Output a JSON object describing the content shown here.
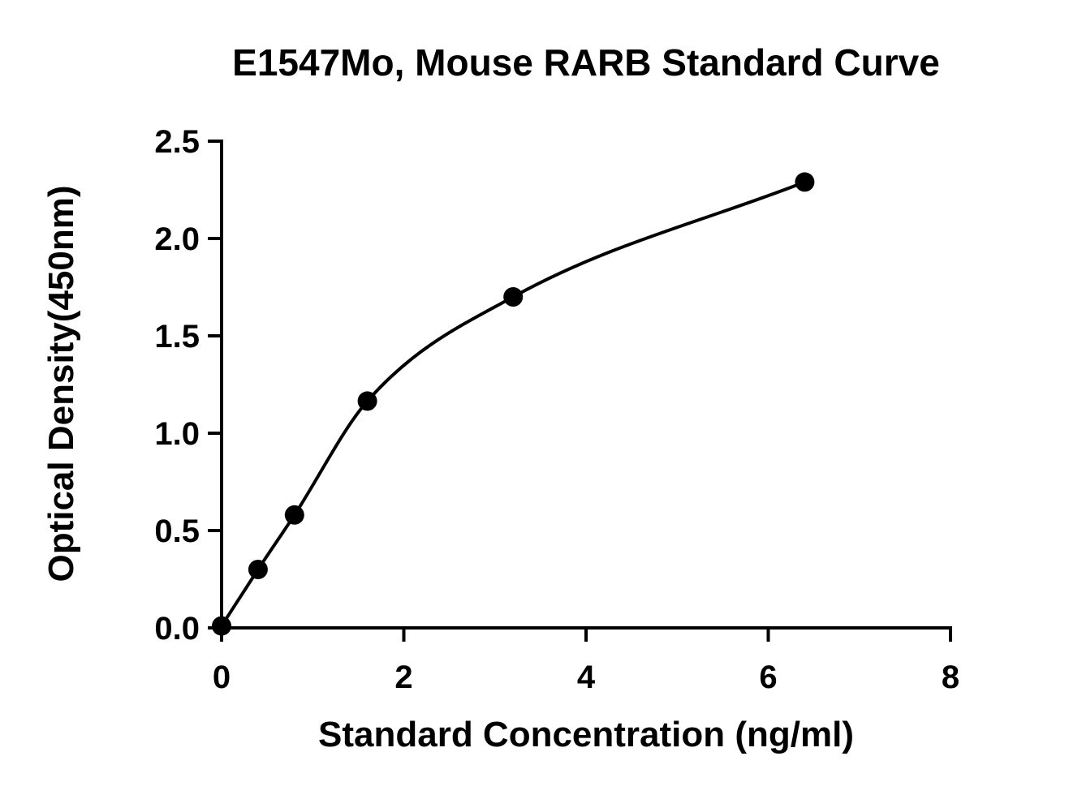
{
  "chart_data": {
    "type": "scatter",
    "title": "E1547Mo, Mouse RARB Standard Curve",
    "xlabel": "Standard Concentration (ng/ml)",
    "ylabel": "Optical Density(450nm)",
    "xlim": [
      0,
      8
    ],
    "ylim": [
      0,
      2.5
    ],
    "x_ticks": [
      "0",
      "2",
      "4",
      "6",
      "8"
    ],
    "x_tick_values": [
      0,
      2,
      4,
      6,
      8
    ],
    "y_ticks": [
      "0.0",
      "0.5",
      "1.0",
      "1.5",
      "2.0",
      "2.5"
    ],
    "y_tick_values": [
      0,
      0.5,
      1.0,
      1.5,
      2.0,
      2.5
    ],
    "grid": false,
    "legend": "none",
    "series": [
      {
        "x": [
          0,
          0.4,
          0.8,
          1.6,
          3.2,
          6.4
        ],
        "y": [
          0.01,
          0.3,
          0.58,
          1.165,
          1.7,
          2.29
        ],
        "marker": "circle",
        "color": "#000000",
        "fit_curve": true
      }
    ]
  }
}
